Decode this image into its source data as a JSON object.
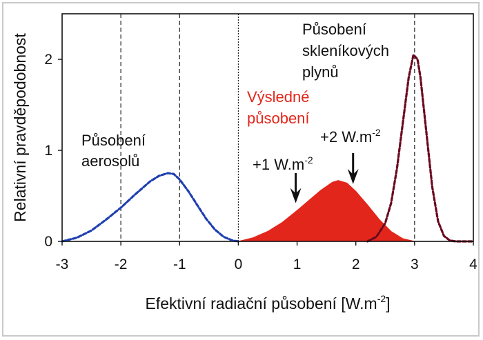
{
  "chart_data": {
    "type": "line",
    "title": "",
    "xlabel": "Efektivní radiační působení [W.m",
    "xlabel_sup": "-2",
    "xlabel_tail": "]",
    "ylabel": "Relativní pravděpodobnost",
    "xlim": [
      -3,
      4
    ],
    "ylim": [
      0,
      2.5
    ],
    "x_ticks": [
      -3,
      -2,
      -1,
      0,
      1,
      2,
      3,
      4
    ],
    "x_tick_labels": [
      "-3",
      "-2",
      "-1",
      "0",
      "1",
      "2",
      "3",
      "4"
    ],
    "y_ticks": [
      0,
      1,
      2
    ],
    "y_tick_labels": [
      "0",
      "1",
      "2"
    ],
    "vlines": [
      -2,
      -1,
      0,
      3
    ],
    "grid": false,
    "series": [
      {
        "name": "Působení aerosolů",
        "label_lines": [
          "Působení",
          "aerosolů"
        ],
        "style": "dashed",
        "color": "#1f3fb0",
        "x": [
          -3,
          -2.75,
          -2.5,
          -2.25,
          -2.0,
          -1.75,
          -1.5,
          -1.35,
          -1.2,
          -1.1,
          -1.0,
          -0.85,
          -0.7,
          -0.55,
          -0.4,
          -0.25,
          -0.1,
          0.0
        ],
        "y": [
          0.0,
          0.04,
          0.12,
          0.24,
          0.37,
          0.52,
          0.66,
          0.72,
          0.75,
          0.74,
          0.68,
          0.55,
          0.4,
          0.25,
          0.13,
          0.05,
          0.01,
          0.0
        ]
      },
      {
        "name": "Výsledné působení",
        "label_lines": [
          "Výsledné",
          "působení"
        ],
        "style": "filled",
        "color": "#e3261b",
        "x": [
          0.0,
          0.25,
          0.5,
          0.75,
          1.0,
          1.2,
          1.4,
          1.6,
          1.7,
          1.85,
          2.0,
          2.2,
          2.4,
          2.6,
          2.8,
          3.0
        ],
        "y": [
          0.0,
          0.04,
          0.11,
          0.21,
          0.34,
          0.45,
          0.56,
          0.65,
          0.67,
          0.64,
          0.55,
          0.4,
          0.24,
          0.11,
          0.03,
          0.0
        ]
      },
      {
        "name": "Působení skleníkových plynů",
        "label_lines": [
          "Působení",
          "skleníkových",
          "plynů"
        ],
        "style": "dashed",
        "color": "#6b0a1f",
        "x": [
          2.2,
          2.35,
          2.5,
          2.6,
          2.7,
          2.8,
          2.9,
          2.98,
          3.05,
          3.1,
          3.2,
          3.3,
          3.4,
          3.5,
          3.6,
          3.7,
          4.0
        ],
        "y": [
          0.0,
          0.05,
          0.2,
          0.42,
          0.8,
          1.3,
          1.8,
          2.05,
          2.0,
          1.8,
          1.2,
          0.6,
          0.22,
          0.06,
          0.01,
          0.0,
          0.0
        ]
      }
    ],
    "annotations": [
      {
        "text": "+1 W.m",
        "sup": "-2",
        "x": 1,
        "y_tip": 0.42,
        "y_tail": 0.75
      },
      {
        "text": "+2 W.m",
        "sup": "-2",
        "x": 2,
        "y_tip": 0.63,
        "y_tail": 0.97
      }
    ]
  }
}
